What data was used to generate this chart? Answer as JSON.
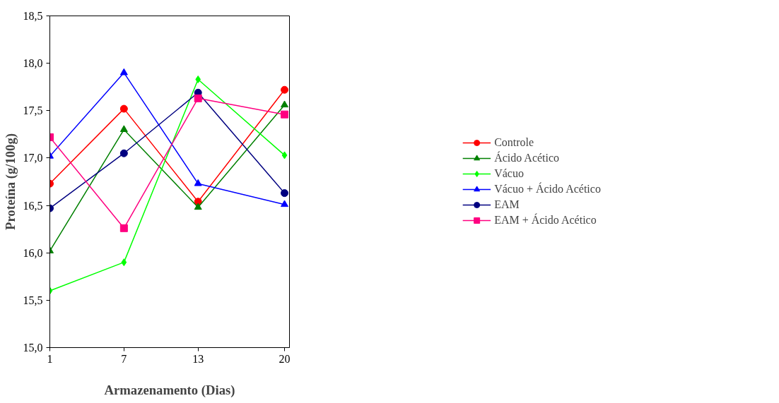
{
  "chart_data": {
    "type": "line",
    "xlabel": "Armazenamento (Dias)",
    "ylabel": "Proteína (g/100g)",
    "x": [
      1,
      7,
      13,
      20
    ],
    "xlim": [
      1,
      20.4
    ],
    "xticks": [
      1,
      7,
      13,
      20
    ],
    "ylim": [
      15.0,
      18.5
    ],
    "yticks": [
      {
        "value": 15.0,
        "label": "15,0"
      },
      {
        "value": 15.5,
        "label": "15,5"
      },
      {
        "value": 16.0,
        "label": "16,0"
      },
      {
        "value": 16.5,
        "label": "16,5"
      },
      {
        "value": 17.0,
        "label": "17,0"
      },
      {
        "value": 17.5,
        "label": "17,5"
      },
      {
        "value": 18.0,
        "label": "18,0"
      },
      {
        "value": 18.5,
        "label": "18,5"
      }
    ],
    "grid": false,
    "legend": "right",
    "line_style": "solid",
    "series": [
      {
        "name": "Controle",
        "color": "#ff0000",
        "marker": "circle",
        "values": [
          16.73,
          17.52,
          16.54,
          17.72
        ]
      },
      {
        "name": "Ácido Acético",
        "color": "#008000",
        "marker": "triangle",
        "values": [
          16.02,
          17.3,
          16.48,
          17.56
        ]
      },
      {
        "name": "Vácuo",
        "color": "#00ff00",
        "marker": "diamond",
        "values": [
          15.6,
          15.9,
          17.83,
          17.03
        ]
      },
      {
        "name": "Vácuo + Ácido Acético",
        "color": "#0000ff",
        "marker": "triangle",
        "values": [
          17.02,
          17.9,
          16.73,
          16.51
        ]
      },
      {
        "name": "EAM",
        "color": "#000080",
        "marker": "circle",
        "values": [
          16.47,
          17.05,
          17.69,
          16.63
        ]
      },
      {
        "name": "EAM + Ácido Acético",
        "color": "#ff0080",
        "marker": "square",
        "values": [
          17.22,
          16.26,
          17.63,
          17.46
        ]
      }
    ]
  }
}
